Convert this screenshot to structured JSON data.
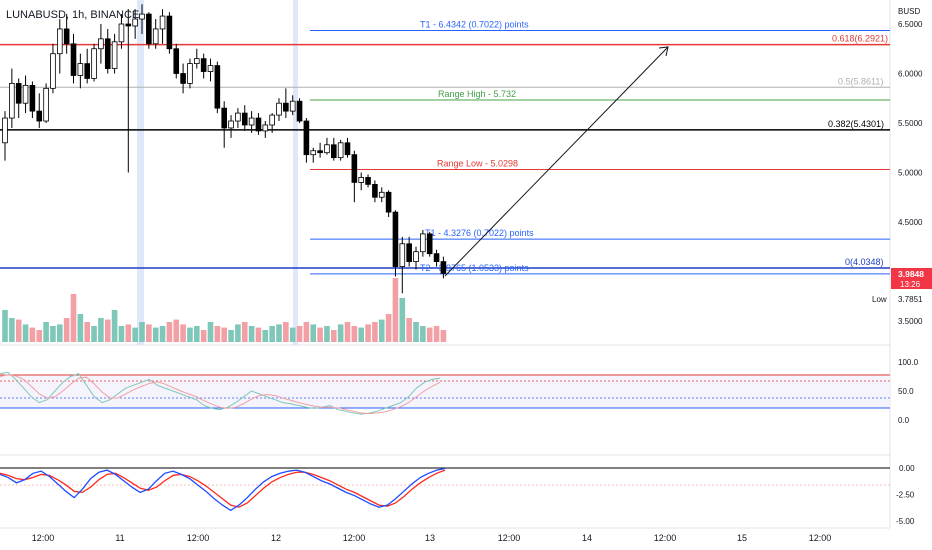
{
  "header": {
    "symbol_label": "LUNABUSD, 1h, BINANCE"
  },
  "axis": {
    "currency": "BUSD",
    "price_ticks": [
      "6.5000",
      "6.0000",
      "5.5000",
      "5.0000",
      "4.5000",
      "3.5000"
    ],
    "price_values": [
      6.5,
      6.0,
      5.5,
      5.0,
      4.5,
      3.5
    ],
    "rsi_ticks": [
      "100.0",
      "50.0",
      "0.0"
    ],
    "rsi_values": [
      100,
      50,
      0
    ],
    "macd_ticks": [
      "0.00",
      "-2.50",
      "-5.00"
    ],
    "macd_values": [
      0,
      -2.5,
      -5
    ],
    "time_ticks": [
      "12:00",
      "11",
      "12:00",
      "12",
      "12:00",
      "13",
      "12:00",
      "14",
      "12:00",
      "15",
      "12:00"
    ],
    "time_positions": [
      43,
      120,
      198,
      276,
      354,
      430,
      509,
      587,
      665,
      742,
      820
    ]
  },
  "badges": {
    "current_price": "3.9848",
    "countdown": "13:26",
    "low_label": "Low",
    "low_value": "3.7851"
  },
  "chart_data": {
    "type": "candlestick",
    "y_range": [
      3.45,
      6.7
    ],
    "levels": [
      {
        "label": "T1 - 6.4342 (0.7022) points",
        "value": 6.4342,
        "color": "#2962ff"
      },
      {
        "label": "0.618(6.2921)",
        "value": 6.2921,
        "color": "#e53935"
      },
      {
        "label": "0.5(5.8611)",
        "value": 5.8611,
        "color": "#b0b0b0"
      },
      {
        "label": "Range High - 5.732",
        "value": 5.732,
        "color": "#43a047"
      },
      {
        "label": "0.382(5.4301)",
        "value": 5.4301,
        "color": "#000000"
      },
      {
        "label": "Range Low - 5.0298",
        "value": 5.0298,
        "color": "#e53935"
      },
      {
        "label": "T1 - 4.3276 (0.7022) points",
        "value": 4.3276,
        "color": "#2962ff"
      },
      {
        "label": "0(4.0348)",
        "value": 4.0348,
        "color": "#1e3fbf"
      },
      {
        "label": "T2 - 3.9765 (1.0533) points",
        "value": 3.9765,
        "color": "#2962ff"
      }
    ],
    "candles_ohlc": [
      [
        5.3,
        5.62,
        5.12,
        5.55
      ],
      [
        5.55,
        6.05,
        5.45,
        5.9
      ],
      [
        5.9,
        5.95,
        5.55,
        5.7
      ],
      [
        5.7,
        5.98,
        5.6,
        5.88
      ],
      [
        5.88,
        5.92,
        5.55,
        5.62
      ],
      [
        5.62,
        5.8,
        5.45,
        5.52
      ],
      [
        5.52,
        5.9,
        5.5,
        5.85
      ],
      [
        5.85,
        6.3,
        5.8,
        6.2
      ],
      [
        6.2,
        6.55,
        6.0,
        6.45
      ],
      [
        6.45,
        6.6,
        6.2,
        6.3
      ],
      [
        6.3,
        6.4,
        5.9,
        5.98
      ],
      [
        5.98,
        6.2,
        5.85,
        6.1
      ],
      [
        6.1,
        6.25,
        5.9,
        5.95
      ],
      [
        5.95,
        6.3,
        5.92,
        6.25
      ],
      [
        6.25,
        6.5,
        6.1,
        6.35
      ],
      [
        6.35,
        6.45,
        6.0,
        6.05
      ],
      [
        6.05,
        6.4,
        6.0,
        6.32
      ],
      [
        6.32,
        6.6,
        6.25,
        6.5
      ],
      [
        6.5,
        6.65,
        5.0,
        6.48
      ],
      [
        6.48,
        6.65,
        6.35,
        6.55
      ],
      [
        6.55,
        6.7,
        6.4,
        6.6
      ],
      [
        6.6,
        6.62,
        6.25,
        6.3
      ],
      [
        6.3,
        6.55,
        6.25,
        6.45
      ],
      [
        6.45,
        6.65,
        6.3,
        6.58
      ],
      [
        6.58,
        6.62,
        6.2,
        6.25
      ],
      [
        6.25,
        6.3,
        5.95,
        6.0
      ],
      [
        6.0,
        6.1,
        5.8,
        5.9
      ],
      [
        5.9,
        6.15,
        5.85,
        6.1
      ],
      [
        6.1,
        6.25,
        6.05,
        6.15
      ],
      [
        6.15,
        6.2,
        5.95,
        6.02
      ],
      [
        6.02,
        6.15,
        5.92,
        6.08
      ],
      [
        6.08,
        6.12,
        5.6,
        5.65
      ],
      [
        5.65,
        5.72,
        5.25,
        5.45
      ],
      [
        5.45,
        5.58,
        5.35,
        5.52
      ],
      [
        5.52,
        5.65,
        5.45,
        5.6
      ],
      [
        5.6,
        5.68,
        5.42,
        5.48
      ],
      [
        5.48,
        5.62,
        5.4,
        5.55
      ],
      [
        5.55,
        5.6,
        5.38,
        5.42
      ],
      [
        5.42,
        5.52,
        5.35,
        5.48
      ],
      [
        5.48,
        5.6,
        5.4,
        5.58
      ],
      [
        5.58,
        5.75,
        5.52,
        5.7
      ],
      [
        5.7,
        5.85,
        5.55,
        5.62
      ],
      [
        5.62,
        5.78,
        5.58,
        5.72
      ],
      [
        5.72,
        5.75,
        5.5,
        5.52
      ],
      [
        5.52,
        5.55,
        5.1,
        5.18
      ],
      [
        5.18,
        5.25,
        5.1,
        5.22
      ],
      [
        5.22,
        5.3,
        5.15,
        5.2
      ],
      [
        5.2,
        5.35,
        5.18,
        5.28
      ],
      [
        5.28,
        5.35,
        5.12,
        5.15
      ],
      [
        5.15,
        5.33,
        5.12,
        5.3
      ],
      [
        5.3,
        5.35,
        5.15,
        5.18
      ],
      [
        5.18,
        5.22,
        4.7,
        4.9
      ],
      [
        4.9,
        5.0,
        4.82,
        4.95
      ],
      [
        4.95,
        4.98,
        4.85,
        4.88
      ],
      [
        4.88,
        4.92,
        4.7,
        4.75
      ],
      [
        4.75,
        4.85,
        4.7,
        4.8
      ],
      [
        4.8,
        4.82,
        4.55,
        4.6
      ],
      [
        4.6,
        4.62,
        3.95,
        4.05
      ],
      [
        4.05,
        4.35,
        3.78,
        4.28
      ],
      [
        4.28,
        4.35,
        4.05,
        4.1
      ],
      [
        4.1,
        4.25,
        4.02,
        4.2
      ],
      [
        4.2,
        4.42,
        4.15,
        4.38
      ],
      [
        4.38,
        4.4,
        4.15,
        4.18
      ],
      [
        4.18,
        4.22,
        4.05,
        4.1
      ],
      [
        4.1,
        4.15,
        3.93,
        3.98
      ]
    ],
    "volume": [
      40,
      30,
      28,
      22,
      18,
      15,
      25,
      20,
      22,
      30,
      60,
      35,
      25,
      20,
      30,
      28,
      40,
      20,
      22,
      18,
      25,
      22,
      18,
      20,
      25,
      28,
      22,
      18,
      20,
      15,
      25,
      20,
      18,
      15,
      22,
      25,
      20,
      18,
      15,
      20,
      22,
      25,
      18,
      20,
      25,
      22,
      18,
      20,
      15,
      22,
      25,
      20,
      18,
      22,
      25,
      28,
      35,
      80,
      55,
      30,
      25,
      20,
      18,
      20,
      15
    ],
    "macd_line": [
      -0.6,
      -0.9,
      -1.4,
      -1.1,
      -0.5,
      -0.3,
      -0.8,
      -1.5,
      -2.2,
      -2.8,
      -2.0,
      -1.0,
      -0.4,
      -0.2,
      -0.6,
      -1.2,
      -1.8,
      -2.3,
      -2.0,
      -1.2,
      -0.5,
      -0.3,
      -0.6,
      -1.0,
      -1.6,
      -2.2,
      -2.9,
      -3.5,
      -4.0,
      -3.5,
      -2.8,
      -2.0,
      -1.3,
      -0.8,
      -0.5,
      -0.3,
      -0.2,
      -0.4,
      -0.8,
      -1.2,
      -1.5,
      -1.9,
      -2.3,
      -2.6,
      -3.0,
      -3.4,
      -3.7,
      -3.5,
      -2.9,
      -2.2,
      -1.5,
      -0.9,
      -0.5,
      -0.2,
      -0.05
    ],
    "signal_line": [
      -0.5,
      -0.7,
      -1.0,
      -1.1,
      -0.9,
      -0.6,
      -0.7,
      -1.1,
      -1.6,
      -2.2,
      -2.3,
      -1.8,
      -1.1,
      -0.6,
      -0.5,
      -0.9,
      -1.4,
      -1.9,
      -2.1,
      -1.8,
      -1.2,
      -0.7,
      -0.6,
      -0.8,
      -1.2,
      -1.7,
      -2.3,
      -2.9,
      -3.5,
      -3.7,
      -3.3,
      -2.6,
      -1.9,
      -1.3,
      -0.9,
      -0.6,
      -0.4,
      -0.4,
      -0.6,
      -0.9,
      -1.2,
      -1.6,
      -2.0,
      -2.3,
      -2.7,
      -3.1,
      -3.5,
      -3.6,
      -3.3,
      -2.7,
      -2.0,
      -1.4,
      -0.9,
      -0.5,
      -0.2
    ],
    "rsi_k": [
      80,
      82,
      70,
      55,
      40,
      30,
      35,
      50,
      65,
      75,
      80,
      60,
      40,
      30,
      35,
      45,
      55,
      60,
      65,
      70,
      60,
      55,
      50,
      45,
      40,
      35,
      25,
      20,
      18,
      22,
      30,
      40,
      50,
      45,
      40,
      35,
      30,
      28,
      25,
      22,
      20,
      22,
      25,
      18,
      15,
      12,
      10,
      12,
      15,
      20,
      25,
      30,
      40,
      55,
      65,
      70,
      72
    ],
    "rsi_d": [
      75,
      78,
      76,
      70,
      58,
      45,
      38,
      40,
      50,
      62,
      72,
      74,
      62,
      48,
      38,
      38,
      45,
      52,
      58,
      63,
      66,
      62,
      56,
      50,
      45,
      40,
      33,
      27,
      22,
      20,
      22,
      28,
      36,
      42,
      44,
      42,
      38,
      34,
      30,
      27,
      24,
      22,
      22,
      21,
      18,
      15,
      12,
      11,
      12,
      14,
      18,
      23,
      30,
      40,
      50,
      58,
      65
    ]
  },
  "colors": {
    "bull": "#ffffff",
    "bear": "#000000",
    "vol_up": "#7fc7b9",
    "vol_down": "#f2a0a5",
    "macd": "#1e4bff",
    "signal": "#ff2a1a",
    "price_badge": "#f23645"
  }
}
